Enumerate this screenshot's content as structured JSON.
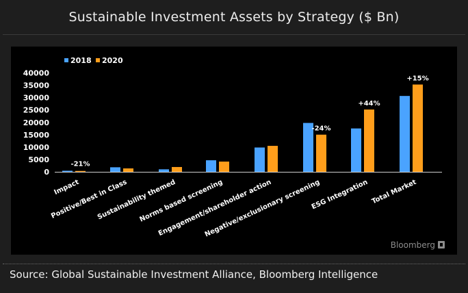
{
  "header": {
    "title": "Sustainable Investment Assets by Strategy ($ Bn)"
  },
  "footer": {
    "source": "Source: Global Sustainable Investment Alliance, Bloomberg Intelligence"
  },
  "watermark": {
    "text": "Bloomberg"
  },
  "colors": {
    "series_2018": "#4aa3ff",
    "series_2020": "#ff9e1b",
    "background": "#000000",
    "text": "#ffffff"
  },
  "chart_data": {
    "type": "bar",
    "title": "Sustainable Investment Assets by Strategy ($ Bn)",
    "xlabel": "",
    "ylabel": "",
    "ylim": [
      0,
      40000
    ],
    "yticks": [
      0,
      5000,
      10000,
      15000,
      20000,
      25000,
      30000,
      35000,
      40000
    ],
    "ytick_labels": [
      "0",
      "5000",
      "10000",
      "15000",
      "20000",
      "25000",
      "30000",
      "35000",
      "40000"
    ],
    "grid": false,
    "legend_position": "top-left",
    "categories": [
      "Impact",
      "Positive/Best in Class",
      "Sustainability themed",
      "Norms based screening",
      "Engagement/shareholder action",
      "Negative/exclusionary screening",
      "ESG Integration",
      "Total Market"
    ],
    "series": [
      {
        "name": "2018",
        "color": "#4aa3ff",
        "values": [
          444,
          1842,
          1018,
          4679,
          9835,
          19771,
          17544,
          30683
        ]
      },
      {
        "name": "2020",
        "color": "#ff9e1b",
        "values": [
          352,
          1384,
          1948,
          4140,
          10504,
          15030,
          25195,
          35301
        ]
      }
    ],
    "annotations": [
      {
        "category": "Impact",
        "text": "-21%"
      },
      {
        "category": "Negative/exclusionary screening",
        "text": "-24%"
      },
      {
        "category": "ESG Integration",
        "text": "+44%"
      },
      {
        "category": "Total Market",
        "text": "+15%"
      }
    ]
  }
}
